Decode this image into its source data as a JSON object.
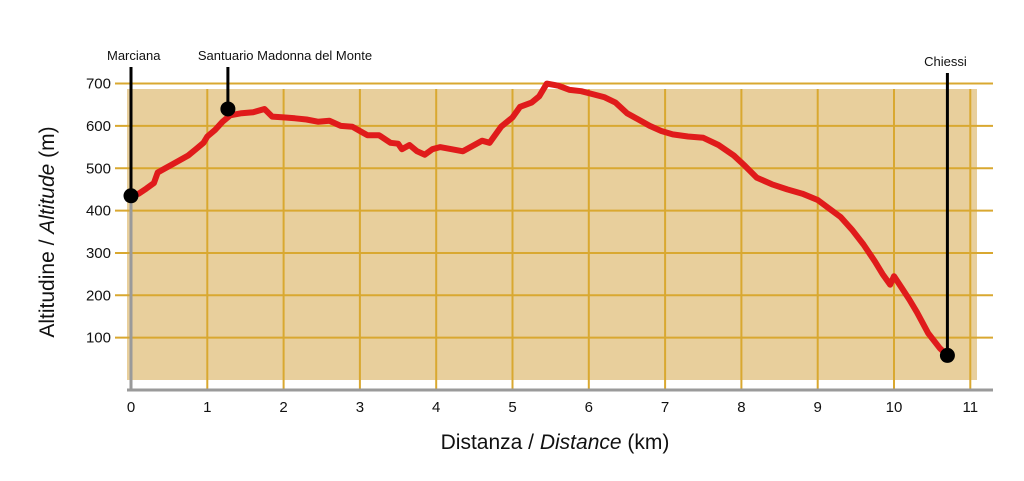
{
  "chart_data": {
    "type": "line",
    "xlabel": {
      "plain": "Distanza / ",
      "italic": "Distance",
      "unit": " (km)"
    },
    "ylabel": {
      "plain": "Altitudine / ",
      "italic": "Altitude",
      "unit": " (m)"
    },
    "xlim": [
      0,
      11
    ],
    "ylim": [
      0,
      730
    ],
    "x_ticks": [
      0,
      1,
      2,
      3,
      4,
      5,
      6,
      7,
      8,
      9,
      10,
      11
    ],
    "y_ticks": [
      100,
      200,
      300,
      400,
      500,
      600,
      700
    ],
    "grid": true,
    "colors": {
      "background": "#e8cf9c",
      "grid": "#d9a830",
      "line": "#e01b1b",
      "axis": "#9a9a9a",
      "marker": "#000000"
    },
    "series": [
      {
        "points": [
          [
            0,
            435
          ],
          [
            0.1,
            440
          ],
          [
            0.2,
            452
          ],
          [
            0.3,
            465
          ],
          [
            0.35,
            490
          ],
          [
            0.45,
            500
          ],
          [
            0.55,
            510
          ],
          [
            0.65,
            520
          ],
          [
            0.75,
            530
          ],
          [
            0.85,
            545
          ],
          [
            0.95,
            560
          ],
          [
            1.0,
            575
          ],
          [
            1.1,
            590
          ],
          [
            1.2,
            610
          ],
          [
            1.3,
            625
          ],
          [
            1.45,
            630
          ],
          [
            1.6,
            632
          ],
          [
            1.75,
            640
          ],
          [
            1.85,
            622
          ],
          [
            2.0,
            620
          ],
          [
            2.15,
            618
          ],
          [
            2.3,
            615
          ],
          [
            2.45,
            610
          ],
          [
            2.6,
            612
          ],
          [
            2.75,
            600
          ],
          [
            2.9,
            598
          ],
          [
            3.0,
            588
          ],
          [
            3.1,
            578
          ],
          [
            3.25,
            578
          ],
          [
            3.4,
            560
          ],
          [
            3.5,
            558
          ],
          [
            3.55,
            545
          ],
          [
            3.65,
            555
          ],
          [
            3.75,
            540
          ],
          [
            3.85,
            532
          ],
          [
            3.95,
            545
          ],
          [
            4.05,
            550
          ],
          [
            4.2,
            545
          ],
          [
            4.35,
            540
          ],
          [
            4.5,
            555
          ],
          [
            4.6,
            565
          ],
          [
            4.7,
            560
          ],
          [
            4.85,
            598
          ],
          [
            5.0,
            620
          ],
          [
            5.1,
            645
          ],
          [
            5.25,
            655
          ],
          [
            5.35,
            670
          ],
          [
            5.45,
            700
          ],
          [
            5.6,
            695
          ],
          [
            5.75,
            685
          ],
          [
            5.9,
            682
          ],
          [
            6.05,
            675
          ],
          [
            6.2,
            668
          ],
          [
            6.35,
            655
          ],
          [
            6.5,
            630
          ],
          [
            6.65,
            615
          ],
          [
            6.8,
            600
          ],
          [
            6.95,
            588
          ],
          [
            7.1,
            580
          ],
          [
            7.3,
            575
          ],
          [
            7.5,
            572
          ],
          [
            7.7,
            555
          ],
          [
            7.9,
            530
          ],
          [
            8.05,
            505
          ],
          [
            8.2,
            478
          ],
          [
            8.4,
            462
          ],
          [
            8.6,
            450
          ],
          [
            8.8,
            440
          ],
          [
            9.0,
            425
          ],
          [
            9.15,
            405
          ],
          [
            9.3,
            385
          ],
          [
            9.45,
            355
          ],
          [
            9.6,
            320
          ],
          [
            9.75,
            280
          ],
          [
            9.85,
            250
          ],
          [
            9.95,
            225
          ],
          [
            10.0,
            245
          ],
          [
            10.1,
            218
          ],
          [
            10.2,
            190
          ],
          [
            10.3,
            160
          ],
          [
            10.45,
            110
          ],
          [
            10.6,
            75
          ],
          [
            10.7,
            58
          ]
        ]
      }
    ],
    "markers": [
      {
        "name": "Marciana",
        "x": 0,
        "y": 435
      },
      {
        "name": "Santuario Madonna del Monte",
        "x": 1.27,
        "y": 640
      },
      {
        "name": "Chiessi",
        "x": 10.7,
        "y": 58
      }
    ]
  }
}
